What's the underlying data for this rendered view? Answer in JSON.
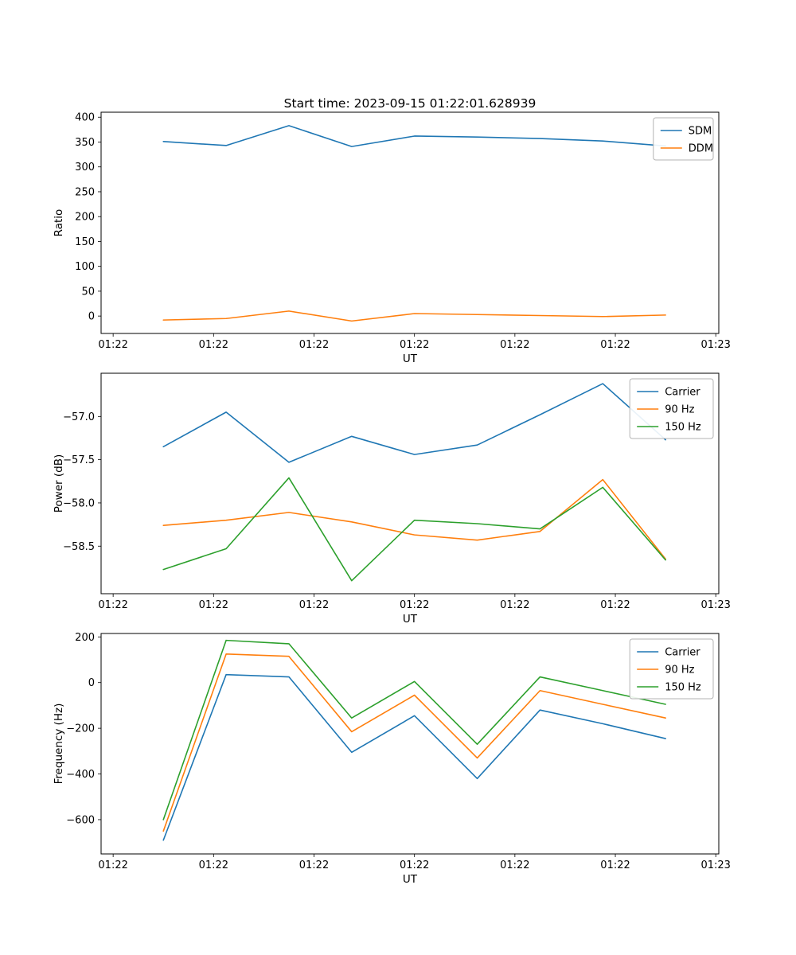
{
  "figure": {
    "title": "Start time: 2023-09-15 01:22:01.628939",
    "background": "#ffffff"
  },
  "chart_data": [
    {
      "type": "line",
      "title": "Start time: 2023-09-15 01:22:01.628939",
      "xlabel": "UT",
      "ylabel": "Ratio",
      "xlim": [
        -0.12,
        6.03
      ],
      "ylim": [
        -35,
        410
      ],
      "grid": false,
      "legend_position": "upper right",
      "xticks": {
        "values": [
          0,
          1,
          2,
          3,
          4,
          5,
          6
        ],
        "labels": [
          "01:22",
          "01:22",
          "01:22",
          "01:22",
          "01:22",
          "01:22",
          "01:23"
        ]
      },
      "yticks": {
        "values": [
          0,
          50,
          100,
          150,
          200,
          250,
          300,
          350,
          400
        ],
        "labels": [
          "0",
          "50",
          "100",
          "150",
          "200",
          "250",
          "300",
          "350",
          "400"
        ]
      },
      "x": [
        0.5,
        1.125,
        1.75,
        2.375,
        3.0,
        3.625,
        4.25,
        4.875,
        5.5
      ],
      "series": [
        {
          "name": "SDM",
          "color": "#1f77b4",
          "values": [
            351,
            343,
            383,
            341,
            362,
            360,
            357,
            352,
            342
          ]
        },
        {
          "name": "DDM",
          "color": "#ff7f0e",
          "values": [
            -8,
            -5,
            10,
            -10,
            5,
            3,
            1,
            -1,
            2
          ]
        }
      ]
    },
    {
      "type": "line",
      "title": "",
      "xlabel": "UT",
      "ylabel": "Power (dB)",
      "xlim": [
        -0.12,
        6.03
      ],
      "ylim": [
        -59.05,
        -56.5
      ],
      "grid": false,
      "legend_position": "upper right",
      "xticks": {
        "values": [
          0,
          1,
          2,
          3,
          4,
          5,
          6
        ],
        "labels": [
          "01:22",
          "01:22",
          "01:22",
          "01:22",
          "01:22",
          "01:22",
          "01:23"
        ]
      },
      "yticks": {
        "values": [
          -57.0,
          -57.5,
          -58.0,
          -58.5
        ],
        "labels": [
          "−57.0",
          "−57.5",
          "−58.0",
          "−58.5"
        ]
      },
      "x": [
        0.5,
        1.125,
        1.75,
        2.375,
        3.0,
        3.625,
        4.25,
        4.875,
        5.5
      ],
      "series": [
        {
          "name": "Carrier",
          "color": "#1f77b4",
          "values": [
            -57.35,
            -56.95,
            -57.53,
            -57.23,
            -57.44,
            -57.33,
            -56.98,
            -56.62,
            -57.27
          ]
        },
        {
          "name": "90 Hz",
          "color": "#ff7f0e",
          "values": [
            -58.26,
            -58.2,
            -58.11,
            -58.22,
            -58.37,
            -58.43,
            -58.33,
            -57.73,
            -58.65
          ]
        },
        {
          "name": "150 Hz",
          "color": "#2ca02c",
          "values": [
            -58.77,
            -58.53,
            -57.71,
            -58.9,
            -58.2,
            -58.24,
            -58.3,
            -57.82,
            -58.66
          ]
        }
      ]
    },
    {
      "type": "line",
      "title": "",
      "xlabel": "UT",
      "ylabel": "Frequency (Hz)",
      "xlim": [
        -0.12,
        6.03
      ],
      "ylim": [
        -750,
        215
      ],
      "grid": false,
      "legend_position": "upper right",
      "xticks": {
        "values": [
          0,
          1,
          2,
          3,
          4,
          5,
          6
        ],
        "labels": [
          "01:22",
          "01:22",
          "01:22",
          "01:22",
          "01:22",
          "01:22",
          "01:23"
        ]
      },
      "yticks": {
        "values": [
          200,
          0,
          -200,
          -400,
          -600
        ],
        "labels": [
          "200",
          "0",
          "−200",
          "−400",
          "−600"
        ]
      },
      "x": [
        0.5,
        1.125,
        1.75,
        2.375,
        3.0,
        3.625,
        4.25,
        4.875,
        5.5
      ],
      "series": [
        {
          "name": "Carrier",
          "color": "#1f77b4",
          "values": [
            -690,
            35,
            25,
            -305,
            -145,
            -420,
            -120,
            -180,
            -245
          ]
        },
        {
          "name": "90 Hz",
          "color": "#ff7f0e",
          "values": [
            -650,
            125,
            115,
            -215,
            -55,
            -330,
            -35,
            -95,
            -155
          ]
        },
        {
          "name": "150 Hz",
          "color": "#2ca02c",
          "values": [
            -600,
            185,
            170,
            -155,
            5,
            -270,
            25,
            -35,
            -95
          ]
        }
      ]
    }
  ]
}
